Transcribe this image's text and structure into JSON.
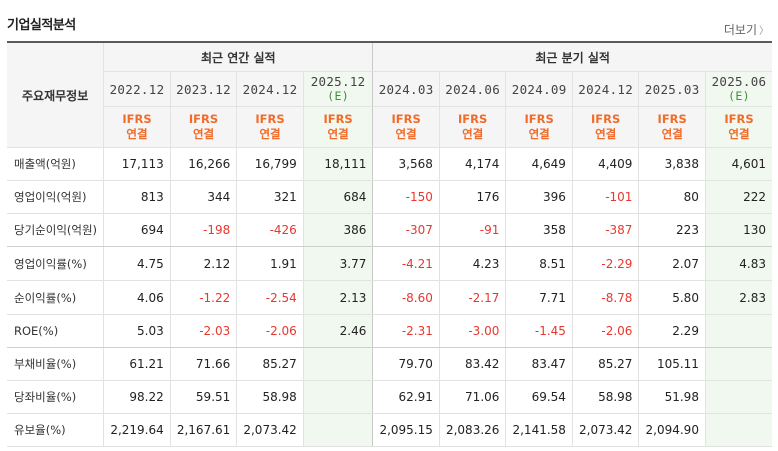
{
  "section": {
    "title": "기업실적분석",
    "more": "더보기"
  },
  "header": {
    "row_label": "주요재무정보",
    "annual_group": "최근 연간 실적",
    "quarter_group": "최근 분기 실적",
    "annual_periods": [
      {
        "label": "2022.12",
        "est": ""
      },
      {
        "label": "2023.12",
        "est": ""
      },
      {
        "label": "2024.12",
        "est": ""
      },
      {
        "label": "2025.12",
        "est": "(E)"
      }
    ],
    "quarter_periods": [
      {
        "label": "2024.03",
        "est": ""
      },
      {
        "label": "2024.06",
        "est": ""
      },
      {
        "label": "2024.09",
        "est": ""
      },
      {
        "label": "2024.12",
        "est": ""
      },
      {
        "label": "2025.03",
        "est": ""
      },
      {
        "label": "2025.06",
        "est": "(E)"
      }
    ],
    "ifrs_line1": "IFRS",
    "ifrs_line2": "연결"
  },
  "rows": [
    {
      "label": "매출액(억원)",
      "values": [
        "17,113",
        "16,266",
        "16,799",
        "18,111",
        "3,568",
        "4,174",
        "4,649",
        "4,409",
        "3,838",
        "4,601"
      ]
    },
    {
      "label": "영업이익(억원)",
      "values": [
        "813",
        "344",
        "321",
        "684",
        "-150",
        "176",
        "396",
        "-101",
        "80",
        "222"
      ]
    },
    {
      "label": "당기순이익(억원)",
      "values": [
        "694",
        "-198",
        "-426",
        "386",
        "-307",
        "-91",
        "358",
        "-387",
        "223",
        "130"
      ]
    },
    {
      "label": "영업이익률(%)",
      "values": [
        "4.75",
        "2.12",
        "1.91",
        "3.77",
        "-4.21",
        "4.23",
        "8.51",
        "-2.29",
        "2.07",
        "4.83"
      ]
    },
    {
      "label": "순이익률(%)",
      "values": [
        "4.06",
        "-1.22",
        "-2.54",
        "2.13",
        "-8.60",
        "-2.17",
        "7.71",
        "-8.78",
        "5.80",
        "2.83"
      ]
    },
    {
      "label": "ROE(%)",
      "values": [
        "5.03",
        "-2.03",
        "-2.06",
        "2.46",
        "-2.31",
        "-3.00",
        "-1.45",
        "-2.06",
        "2.29",
        ""
      ]
    },
    {
      "label": "부채비율(%)",
      "values": [
        "61.21",
        "71.66",
        "85.27",
        "",
        "79.70",
        "83.42",
        "83.47",
        "85.27",
        "105.11",
        ""
      ]
    },
    {
      "label": "당좌비율(%)",
      "values": [
        "98.22",
        "59.51",
        "58.98",
        "",
        "62.91",
        "71.06",
        "69.54",
        "58.98",
        "51.98",
        ""
      ]
    },
    {
      "label": "유보율(%)",
      "values": [
        "2,219.64",
        "2,167.61",
        "2,073.42",
        "",
        "2,095.15",
        "2,083.26",
        "2,141.58",
        "2,073.42",
        "2,094.90",
        ""
      ]
    }
  ],
  "colors": {
    "negative": "#e8372f",
    "ifrs": "#ef6c2b",
    "estimate": "#3c8f3c",
    "estimate_bg": "#f1f8ef"
  }
}
